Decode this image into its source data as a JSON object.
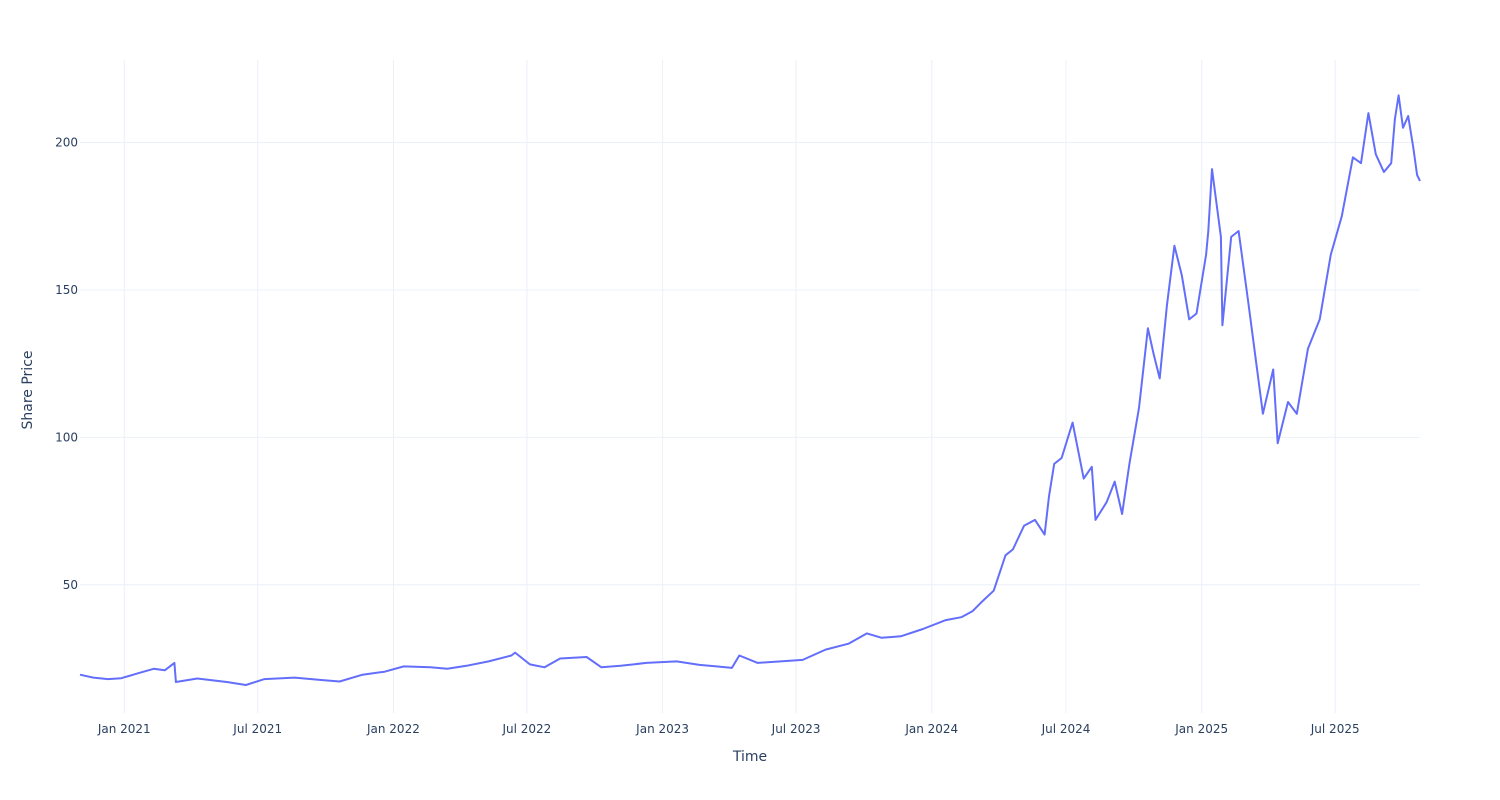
{
  "chart_data": {
    "type": "line",
    "title": "",
    "xlabel": "Time",
    "ylabel": "Share Price",
    "xlim": [
      "2020-11-02",
      "2025-10-24"
    ],
    "ylim": [
      6.5,
      228
    ],
    "grid": true,
    "legend": "none",
    "line_color": "#636efa",
    "x_ticks": [
      {
        "date": "2021-01-01",
        "label": "Jan 2021"
      },
      {
        "date": "2021-07-01",
        "label": "Jul 2021"
      },
      {
        "date": "2022-01-01",
        "label": "Jan 2022"
      },
      {
        "date": "2022-07-01",
        "label": "Jul 2022"
      },
      {
        "date": "2023-01-01",
        "label": "Jan 2023"
      },
      {
        "date": "2023-07-01",
        "label": "Jul 2023"
      },
      {
        "date": "2024-01-01",
        "label": "Jan 2024"
      },
      {
        "date": "2024-07-01",
        "label": "Jul 2024"
      },
      {
        "date": "2025-01-01",
        "label": "Jan 2025"
      },
      {
        "date": "2025-07-01",
        "label": "Jul 2025"
      }
    ],
    "y_ticks": [
      {
        "value": 50,
        "label": "50"
      },
      {
        "value": 100,
        "label": "100"
      },
      {
        "value": 150,
        "label": "150"
      },
      {
        "value": 200,
        "label": "200"
      }
    ],
    "series": [
      {
        "x": [
          "2020-11-02",
          "2020-11-20",
          "2020-12-10",
          "2020-12-28",
          "2021-01-20",
          "2021-02-10",
          "2021-02-25",
          "2021-03-10",
          "2021-03-12",
          "2021-04-10",
          "2021-05-20",
          "2021-06-15",
          "2021-07-10",
          "2021-08-20",
          "2021-09-25",
          "2021-10-20",
          "2021-11-20",
          "2021-12-20",
          "2022-01-15",
          "2022-02-20",
          "2022-03-15",
          "2022-04-10",
          "2022-05-10",
          "2022-06-10",
          "2022-06-15",
          "2022-07-05",
          "2022-07-25",
          "2022-08-15",
          "2022-09-20",
          "2022-10-10",
          "2022-11-05",
          "2022-12-10",
          "2023-01-20",
          "2023-02-20",
          "2023-03-15",
          "2023-04-05",
          "2023-04-15",
          "2023-05-10",
          "2023-06-10",
          "2023-07-10",
          "2023-08-10",
          "2023-09-10",
          "2023-10-05",
          "2023-10-25",
          "2023-11-20",
          "2023-12-20",
          "2024-01-20",
          "2024-02-10",
          "2024-02-25",
          "2024-03-08",
          "2024-03-25",
          "2024-04-10",
          "2024-04-20",
          "2024-05-05",
          "2024-05-20",
          "2024-06-02",
          "2024-06-08",
          "2024-06-15",
          "2024-06-25",
          "2024-07-10",
          "2024-07-25",
          "2024-08-05",
          "2024-08-10",
          "2024-08-25",
          "2024-09-05",
          "2024-09-15",
          "2024-09-25",
          "2024-10-08",
          "2024-10-20",
          "2024-10-28",
          "2024-11-05",
          "2024-11-15",
          "2024-11-25",
          "2024-12-05",
          "2024-12-15",
          "2024-12-25",
          "2025-01-07",
          "2025-01-10",
          "2025-01-15",
          "2025-01-27",
          "2025-01-29",
          "2025-02-10",
          "2025-02-20",
          "2025-03-05",
          "2025-03-25",
          "2025-04-08",
          "2025-04-14",
          "2025-04-28",
          "2025-05-10",
          "2025-05-25",
          "2025-06-10",
          "2025-06-25",
          "2025-07-10",
          "2025-07-25",
          "2025-08-05",
          "2025-08-15",
          "2025-08-25",
          "2025-09-05",
          "2025-09-15",
          "2025-09-20",
          "2025-09-25",
          "2025-10-01",
          "2025-10-08",
          "2025-10-15",
          "2025-10-20",
          "2025-10-24"
        ],
        "y": [
          19.5,
          18.5,
          18.0,
          18.3,
          20.0,
          21.5,
          21.0,
          23.5,
          17.0,
          18.2,
          17.0,
          16.0,
          18.0,
          18.5,
          17.7,
          17.2,
          19.5,
          20.5,
          22.3,
          22.0,
          21.5,
          22.5,
          24.0,
          26.0,
          27.0,
          23.0,
          22.0,
          25.0,
          25.5,
          22.0,
          22.5,
          23.5,
          24.0,
          22.8,
          22.3,
          21.8,
          26.0,
          23.5,
          24.0,
          24.5,
          28.0,
          30.0,
          33.5,
          32.0,
          32.5,
          35.0,
          38.0,
          39.0,
          41.0,
          44.0,
          48.0,
          60.0,
          62.0,
          70.0,
          72.0,
          67.0,
          80.0,
          91.0,
          93.0,
          105.0,
          86.0,
          90.0,
          72.0,
          78.0,
          85.0,
          74.0,
          91.0,
          110.0,
          137.0,
          128.0,
          120.0,
          145.0,
          165.0,
          155.0,
          140.0,
          142.0,
          162.0,
          170.0,
          191.0,
          168.0,
          138.0,
          168.0,
          170.0,
          146.0,
          108.0,
          123.0,
          98.0,
          112.0,
          108.0,
          130.0,
          140.0,
          162.0,
          175.0,
          195.0,
          193.0,
          210.0,
          196.0,
          190.0,
          193.0,
          208.0,
          216.0,
          205.0,
          209.0,
          198.0,
          189.0,
          187.0
        ]
      }
    ]
  }
}
